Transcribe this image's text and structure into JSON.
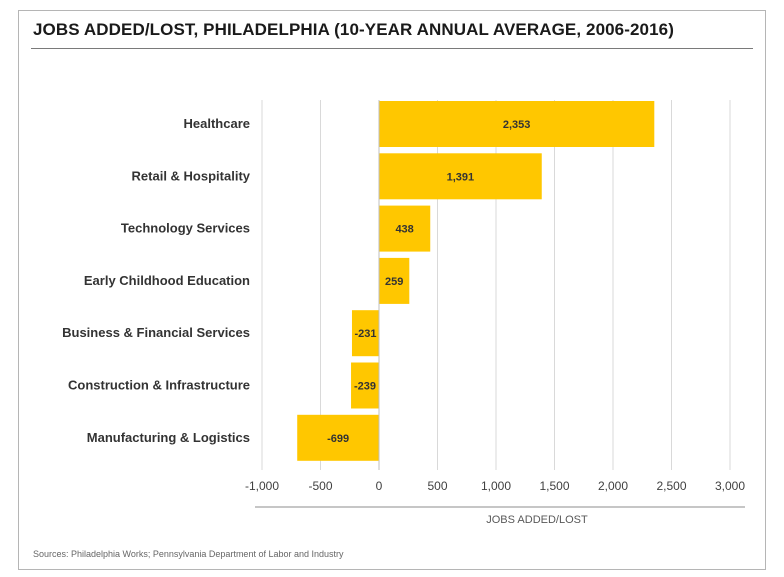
{
  "title": "JOBS ADDED/LOST, PHILADELPHIA (10-YEAR ANNUAL AVERAGE, 2006-2016)",
  "source": "Sources: Philadelphia Works; Pennsylvania Department of Labor and Industry",
  "chart_data": {
    "type": "bar",
    "orientation": "horizontal",
    "title": "JOBS ADDED/LOST, PHILADELPHIA (10-YEAR ANNUAL AVERAGE, 2006-2016)",
    "xlabel": "JOBS ADDED/LOST",
    "ylabel": "",
    "categories": [
      "Healthcare",
      "Retail & Hospitality",
      "Technology Services",
      "Early Childhood Education",
      "Business & Financial Services",
      "Construction & Infrastructure",
      "Manufacturing & Logistics"
    ],
    "values": [
      2353,
      1391,
      438,
      259,
      -231,
      -239,
      -699
    ],
    "value_labels": [
      "2,353",
      "1,391",
      "438",
      "259",
      "-231",
      "-239",
      "-699"
    ],
    "xlim": [
      -1000,
      3000
    ],
    "xticks": [
      -1000,
      -500,
      0,
      500,
      1000,
      1500,
      2000,
      2500,
      3000
    ],
    "xtick_labels": [
      "-1,000",
      "-500",
      "0",
      "500",
      "1,000",
      "1,500",
      "2,000",
      "2,500",
      "3,000"
    ],
    "grid": true,
    "legend": "none",
    "bar_color": "#FFC700",
    "grid_color": "#d9d9d9"
  }
}
